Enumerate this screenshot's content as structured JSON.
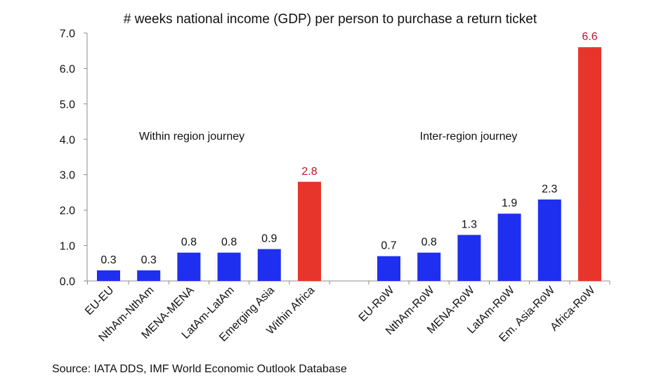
{
  "chart_data": {
    "type": "bar",
    "title": "# weeks national income (GDP) per person to purchase a return ticket",
    "xlabel": "",
    "ylabel": "",
    "ylim": [
      0,
      7
    ],
    "yticks": [
      "0.0",
      "1.0",
      "2.0",
      "3.0",
      "4.0",
      "5.0",
      "6.0",
      "7.0"
    ],
    "grid": false,
    "legend": "none",
    "source": "Source: IATA DDS, IMF World Economic Outlook Database",
    "colors": {
      "default_bar": "#1f2ff0",
      "highlight_bar": "#e8352b",
      "highlight_label": "#c8102e",
      "axis": "#8c8c8c",
      "text": "#111111"
    },
    "groups": [
      {
        "label": "Within region journey",
        "categories": [
          "EU-EU",
          "NthAm-NthAm",
          "MENA-MENA",
          "LatAm-LatAm",
          "Emerging Asia",
          "Within Africa"
        ],
        "values": [
          0.3,
          0.3,
          0.8,
          0.8,
          0.9,
          2.8
        ],
        "value_labels": [
          "0.3",
          "0.3",
          "0.8",
          "0.8",
          "0.9",
          "2.8"
        ],
        "highlight": [
          false,
          false,
          false,
          false,
          false,
          true
        ]
      },
      {
        "label": "Inter-region journey",
        "categories": [
          "EU-RoW",
          "NthAm-RoW",
          "MENA-RoW",
          "LatAm-RoW",
          "Em. Asia-RoW",
          "Africa-RoW"
        ],
        "values": [
          0.7,
          0.8,
          1.3,
          1.9,
          2.3,
          6.6
        ],
        "value_labels": [
          "0.7",
          "0.8",
          "1.3",
          "1.9",
          "2.3",
          "6.6"
        ],
        "highlight": [
          false,
          false,
          false,
          false,
          false,
          true
        ]
      }
    ]
  }
}
